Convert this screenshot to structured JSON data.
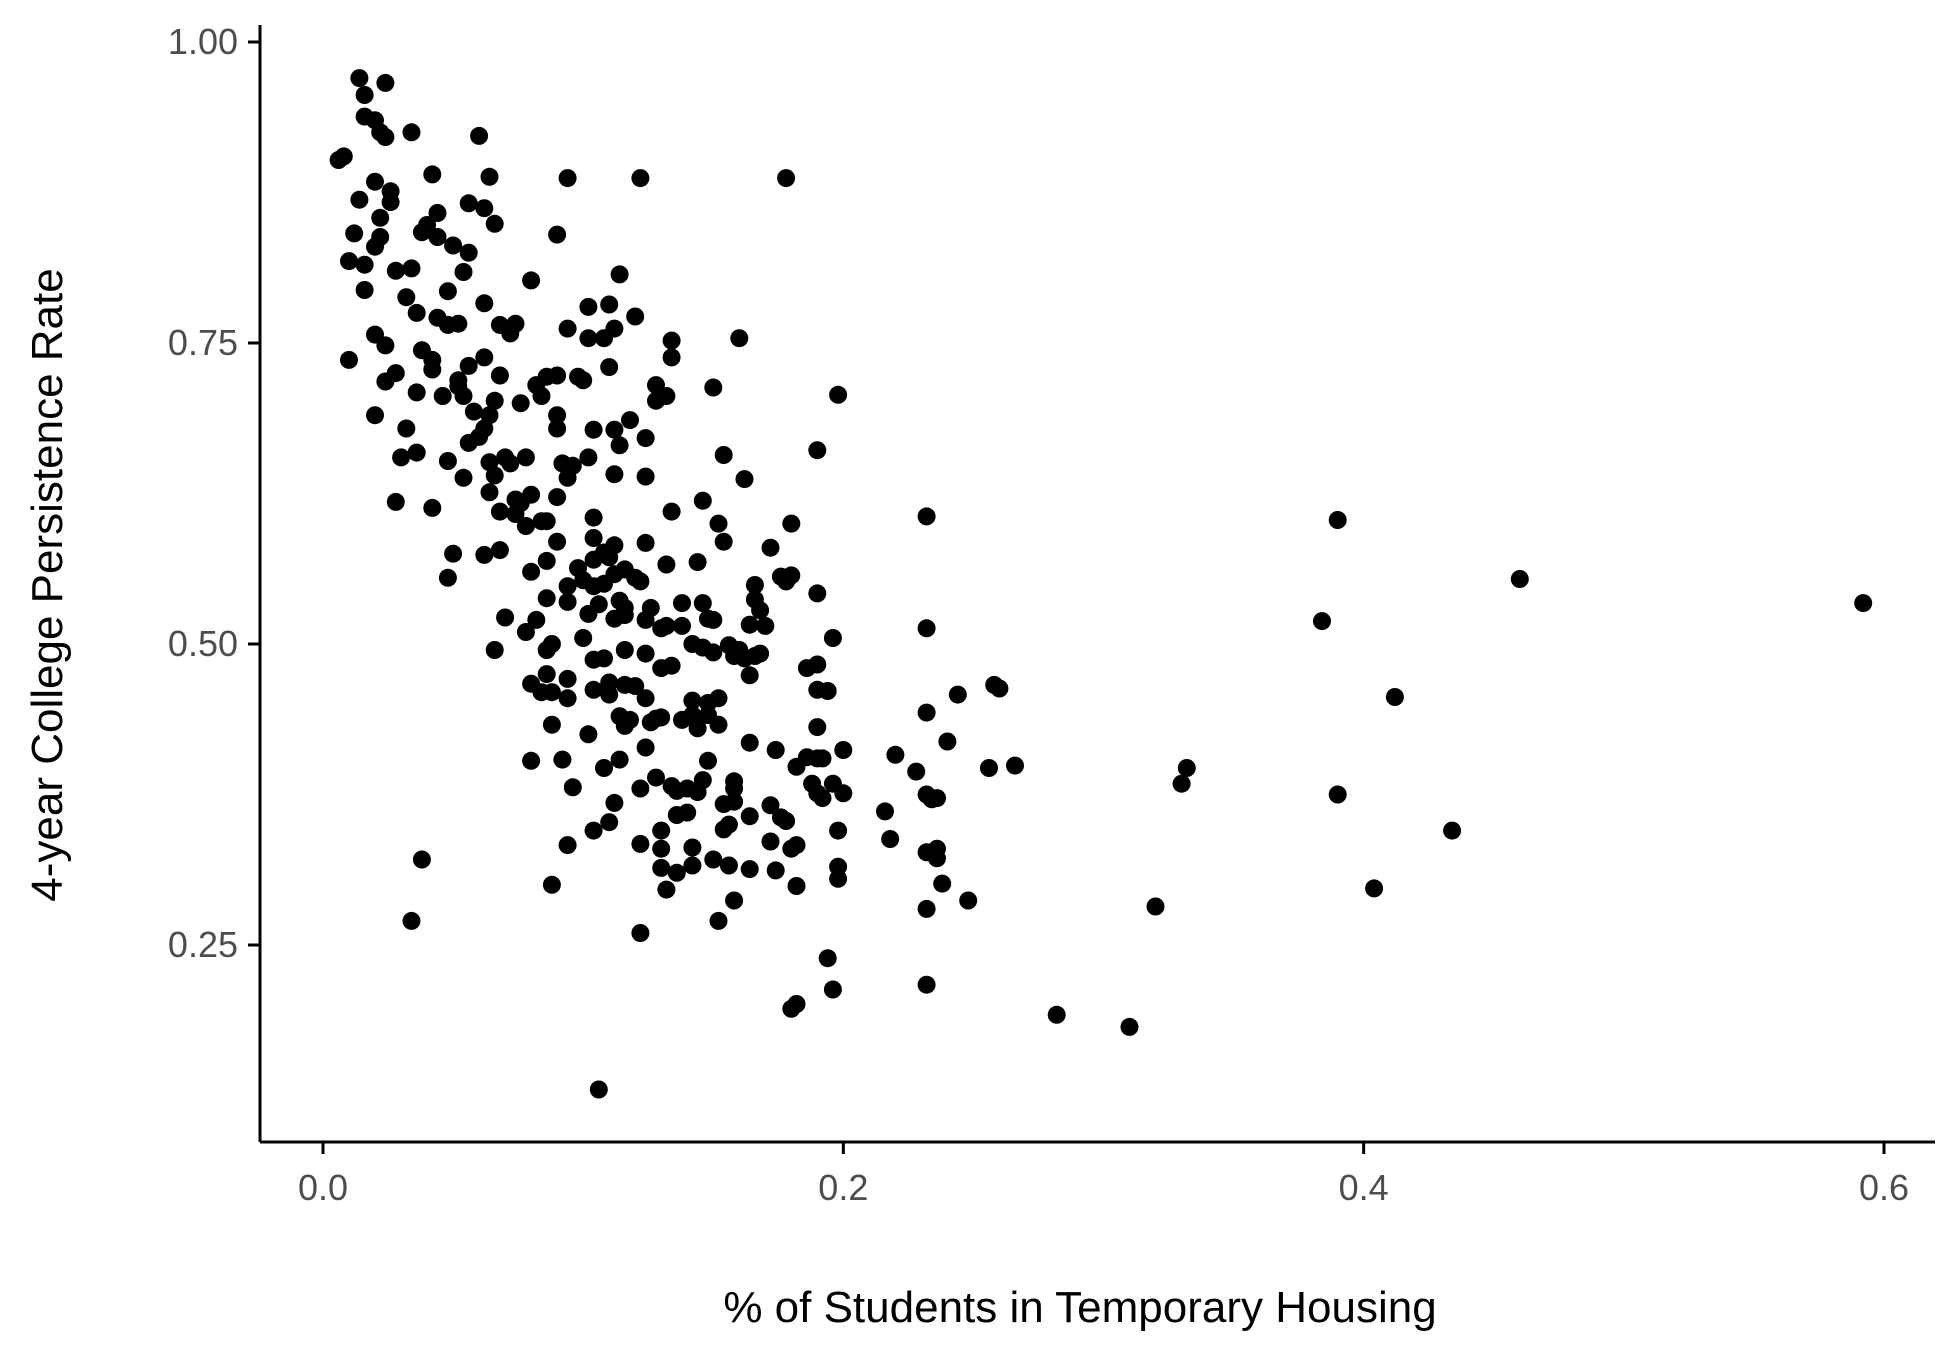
{
  "chart_data": {
    "type": "scatter",
    "title": "",
    "xlabel": "% of Students in Temporary Housing",
    "ylabel": "4-year College Persistence Rate",
    "xlim": [
      -0.025,
      0.62
    ],
    "ylim": [
      0.1,
      1.015
    ],
    "x_ticks": [
      0.0,
      0.2,
      0.4,
      0.6
    ],
    "x_tick_labels": [
      "0.0",
      "0.2",
      "0.4",
      "0.6"
    ],
    "y_ticks": [
      0.25,
      0.5,
      0.75,
      1.0
    ],
    "y_tick_labels": [
      "0.25",
      "0.50",
      "0.75",
      "1.00"
    ],
    "grid": false,
    "legend": "none",
    "point_color": "#000000",
    "points": [
      [
        0.014,
        0.97
      ],
      [
        0.024,
        0.966
      ],
      [
        0.016,
        0.956
      ],
      [
        0.016,
        0.938
      ],
      [
        0.02,
        0.935
      ],
      [
        0.022,
        0.925
      ],
      [
        0.024,
        0.921
      ],
      [
        0.034,
        0.925
      ],
      [
        0.06,
        0.922
      ],
      [
        0.006,
        0.902
      ],
      [
        0.008,
        0.905
      ],
      [
        0.042,
        0.89
      ],
      [
        0.064,
        0.888
      ],
      [
        0.094,
        0.887
      ],
      [
        0.122,
        0.887
      ],
      [
        0.178,
        0.887
      ],
      [
        0.02,
        0.884
      ],
      [
        0.026,
        0.876
      ],
      [
        0.014,
        0.869
      ],
      [
        0.026,
        0.867
      ],
      [
        0.056,
        0.866
      ],
      [
        0.062,
        0.862
      ],
      [
        0.044,
        0.858
      ],
      [
        0.022,
        0.854
      ],
      [
        0.066,
        0.849
      ],
      [
        0.04,
        0.848
      ],
      [
        0.038,
        0.842
      ],
      [
        0.012,
        0.841
      ],
      [
        0.022,
        0.838
      ],
      [
        0.044,
        0.838
      ],
      [
        0.09,
        0.84
      ],
      [
        0.02,
        0.83
      ],
      [
        0.05,
        0.831
      ],
      [
        0.056,
        0.825
      ],
      [
        0.01,
        0.818
      ],
      [
        0.016,
        0.815
      ],
      [
        0.028,
        0.81
      ],
      [
        0.034,
        0.812
      ],
      [
        0.054,
        0.809
      ],
      [
        0.114,
        0.807
      ],
      [
        0.08,
        0.802
      ],
      [
        0.016,
        0.794
      ],
      [
        0.032,
        0.788
      ],
      [
        0.048,
        0.793
      ],
      [
        0.062,
        0.783
      ],
      [
        0.102,
        0.78
      ],
      [
        0.11,
        0.782
      ],
      [
        0.036,
        0.775
      ],
      [
        0.044,
        0.771
      ],
      [
        0.12,
        0.772
      ],
      [
        0.048,
        0.765
      ],
      [
        0.052,
        0.766
      ],
      [
        0.068,
        0.765
      ],
      [
        0.074,
        0.766
      ],
      [
        0.094,
        0.762
      ],
      [
        0.112,
        0.762
      ],
      [
        0.02,
        0.757
      ],
      [
        0.072,
        0.758
      ],
      [
        0.102,
        0.754
      ],
      [
        0.108,
        0.754
      ],
      [
        0.134,
        0.752
      ],
      [
        0.16,
        0.754
      ],
      [
        0.024,
        0.748
      ],
      [
        0.038,
        0.744
      ],
      [
        0.01,
        0.736
      ],
      [
        0.042,
        0.736
      ],
      [
        0.062,
        0.738
      ],
      [
        0.134,
        0.738
      ],
      [
        0.042,
        0.728
      ],
      [
        0.068,
        0.723
      ],
      [
        0.11,
        0.73
      ],
      [
        0.028,
        0.725
      ],
      [
        0.056,
        0.731
      ],
      [
        0.024,
        0.718
      ],
      [
        0.052,
        0.719
      ],
      [
        0.086,
        0.722
      ],
      [
        0.09,
        0.723
      ],
      [
        0.098,
        0.722
      ],
      [
        0.1,
        0.719
      ],
      [
        0.082,
        0.715
      ],
      [
        0.128,
        0.715
      ],
      [
        0.15,
        0.713
      ],
      [
        0.036,
        0.709
      ],
      [
        0.046,
        0.706
      ],
      [
        0.052,
        0.714
      ],
      [
        0.054,
        0.706
      ],
      [
        0.084,
        0.706
      ],
      [
        0.128,
        0.702
      ],
      [
        0.132,
        0.706
      ],
      [
        0.198,
        0.707
      ],
      [
        0.058,
        0.693
      ],
      [
        0.064,
        0.69
      ],
      [
        0.066,
        0.702
      ],
      [
        0.076,
        0.7
      ],
      [
        0.09,
        0.69
      ],
      [
        0.02,
        0.69
      ],
      [
        0.062,
        0.679
      ],
      [
        0.06,
        0.672
      ],
      [
        0.056,
        0.667
      ],
      [
        0.032,
        0.679
      ],
      [
        0.104,
        0.678
      ],
      [
        0.112,
        0.678
      ],
      [
        0.118,
        0.686
      ],
      [
        0.124,
        0.671
      ],
      [
        0.09,
        0.679
      ],
      [
        0.114,
        0.665
      ],
      [
        0.03,
        0.655
      ],
      [
        0.036,
        0.659
      ],
      [
        0.048,
        0.652
      ],
      [
        0.064,
        0.651
      ],
      [
        0.07,
        0.655
      ],
      [
        0.072,
        0.65
      ],
      [
        0.078,
        0.655
      ],
      [
        0.092,
        0.65
      ],
      [
        0.096,
        0.648
      ],
      [
        0.102,
        0.655
      ],
      [
        0.154,
        0.657
      ],
      [
        0.19,
        0.661
      ],
      [
        0.054,
        0.638
      ],
      [
        0.066,
        0.64
      ],
      [
        0.094,
        0.638
      ],
      [
        0.112,
        0.641
      ],
      [
        0.124,
        0.639
      ],
      [
        0.162,
        0.637
      ],
      [
        0.064,
        0.626
      ],
      [
        0.08,
        0.624
      ],
      [
        0.09,
        0.622
      ],
      [
        0.074,
        0.62
      ],
      [
        0.076,
        0.617
      ],
      [
        0.068,
        0.61
      ],
      [
        0.028,
        0.618
      ],
      [
        0.042,
        0.613
      ],
      [
        0.074,
        0.608
      ],
      [
        0.084,
        0.602
      ],
      [
        0.086,
        0.602
      ],
      [
        0.078,
        0.598
      ],
      [
        0.104,
        0.605
      ],
      [
        0.134,
        0.61
      ],
      [
        0.146,
        0.619
      ],
      [
        0.152,
        0.6
      ],
      [
        0.18,
        0.6
      ],
      [
        0.232,
        0.606
      ],
      [
        0.39,
        0.603
      ],
      [
        0.104,
        0.588
      ],
      [
        0.112,
        0.582
      ],
      [
        0.09,
        0.585
      ],
      [
        0.124,
        0.584
      ],
      [
        0.154,
        0.585
      ],
      [
        0.05,
        0.575
      ],
      [
        0.062,
        0.574
      ],
      [
        0.068,
        0.578
      ],
      [
        0.108,
        0.576
      ],
      [
        0.11,
        0.572
      ],
      [
        0.104,
        0.57
      ],
      [
        0.172,
        0.58
      ],
      [
        0.098,
        0.563
      ],
      [
        0.086,
        0.569
      ],
      [
        0.08,
        0.56
      ],
      [
        0.116,
        0.562
      ],
      [
        0.112,
        0.558
      ],
      [
        0.12,
        0.555
      ],
      [
        0.132,
        0.566
      ],
      [
        0.144,
        0.568
      ],
      [
        0.176,
        0.556
      ],
      [
        0.18,
        0.557
      ],
      [
        0.178,
        0.552
      ],
      [
        0.048,
        0.555
      ],
      [
        0.094,
        0.548
      ],
      [
        0.1,
        0.553
      ],
      [
        0.104,
        0.548
      ],
      [
        0.108,
        0.55
      ],
      [
        0.122,
        0.552
      ],
      [
        0.166,
        0.549
      ],
      [
        0.19,
        0.542
      ],
      [
        0.086,
        0.538
      ],
      [
        0.094,
        0.535
      ],
      [
        0.106,
        0.533
      ],
      [
        0.114,
        0.536
      ],
      [
        0.116,
        0.53
      ],
      [
        0.126,
        0.53
      ],
      [
        0.138,
        0.534
      ],
      [
        0.146,
        0.534
      ],
      [
        0.166,
        0.537
      ],
      [
        0.168,
        0.528
      ],
      [
        0.46,
        0.554
      ],
      [
        0.592,
        0.534
      ],
      [
        0.07,
        0.522
      ],
      [
        0.082,
        0.52
      ],
      [
        0.102,
        0.525
      ],
      [
        0.112,
        0.521
      ],
      [
        0.116,
        0.524
      ],
      [
        0.124,
        0.52
      ],
      [
        0.132,
        0.515
      ],
      [
        0.138,
        0.515
      ],
      [
        0.148,
        0.521
      ],
      [
        0.15,
        0.52
      ],
      [
        0.164,
        0.516
      ],
      [
        0.17,
        0.515
      ],
      [
        0.232,
        0.513
      ],
      [
        0.384,
        0.519
      ],
      [
        0.078,
        0.51
      ],
      [
        0.088,
        0.5
      ],
      [
        0.1,
        0.505
      ],
      [
        0.13,
        0.513
      ],
      [
        0.142,
        0.5
      ],
      [
        0.146,
        0.497
      ],
      [
        0.156,
        0.499
      ],
      [
        0.16,
        0.495
      ],
      [
        0.162,
        0.488
      ],
      [
        0.166,
        0.49
      ],
      [
        0.168,
        0.492
      ],
      [
        0.196,
        0.505
      ],
      [
        0.066,
        0.495
      ],
      [
        0.086,
        0.495
      ],
      [
        0.104,
        0.487
      ],
      [
        0.108,
        0.488
      ],
      [
        0.116,
        0.495
      ],
      [
        0.124,
        0.492
      ],
      [
        0.13,
        0.48
      ],
      [
        0.134,
        0.482
      ],
      [
        0.15,
        0.493
      ],
      [
        0.158,
        0.49
      ],
      [
        0.164,
        0.474
      ],
      [
        0.186,
        0.48
      ],
      [
        0.19,
        0.483
      ],
      [
        0.086,
        0.475
      ],
      [
        0.08,
        0.467
      ],
      [
        0.094,
        0.471
      ],
      [
        0.11,
        0.468
      ],
      [
        0.116,
        0.466
      ],
      [
        0.12,
        0.465
      ],
      [
        0.104,
        0.462
      ],
      [
        0.11,
        0.458
      ],
      [
        0.084,
        0.46
      ],
      [
        0.088,
        0.46
      ],
      [
        0.094,
        0.455
      ],
      [
        0.124,
        0.455
      ],
      [
        0.142,
        0.453
      ],
      [
        0.152,
        0.455
      ],
      [
        0.148,
        0.451
      ],
      [
        0.19,
        0.462
      ],
      [
        0.194,
        0.461
      ],
      [
        0.244,
        0.458
      ],
      [
        0.258,
        0.466
      ],
      [
        0.26,
        0.463
      ],
      [
        0.412,
        0.456
      ],
      [
        0.232,
        0.443
      ],
      [
        0.088,
        0.433
      ],
      [
        0.102,
        0.425
      ],
      [
        0.114,
        0.44
      ],
      [
        0.116,
        0.432
      ],
      [
        0.118,
        0.437
      ],
      [
        0.126,
        0.435
      ],
      [
        0.128,
        0.438
      ],
      [
        0.13,
        0.439
      ],
      [
        0.138,
        0.437
      ],
      [
        0.142,
        0.441
      ],
      [
        0.144,
        0.43
      ],
      [
        0.148,
        0.441
      ],
      [
        0.152,
        0.433
      ],
      [
        0.19,
        0.431
      ],
      [
        0.124,
        0.414
      ],
      [
        0.164,
        0.418
      ],
      [
        0.174,
        0.412
      ],
      [
        0.2,
        0.412
      ],
      [
        0.22,
        0.408
      ],
      [
        0.24,
        0.419
      ],
      [
        0.08,
        0.403
      ],
      [
        0.092,
        0.404
      ],
      [
        0.108,
        0.397
      ],
      [
        0.114,
        0.404
      ],
      [
        0.148,
        0.403
      ],
      [
        0.182,
        0.398
      ],
      [
        0.186,
        0.406
      ],
      [
        0.19,
        0.405
      ],
      [
        0.192,
        0.405
      ],
      [
        0.228,
        0.394
      ],
      [
        0.256,
        0.397
      ],
      [
        0.266,
        0.399
      ],
      [
        0.332,
        0.397
      ],
      [
        0.096,
        0.381
      ],
      [
        0.122,
        0.38
      ],
      [
        0.128,
        0.389
      ],
      [
        0.134,
        0.382
      ],
      [
        0.136,
        0.378
      ],
      [
        0.14,
        0.38
      ],
      [
        0.144,
        0.377
      ],
      [
        0.146,
        0.387
      ],
      [
        0.158,
        0.38
      ],
      [
        0.158,
        0.386
      ],
      [
        0.188,
        0.384
      ],
      [
        0.19,
        0.376
      ],
      [
        0.192,
        0.372
      ],
      [
        0.196,
        0.384
      ],
      [
        0.2,
        0.376
      ],
      [
        0.232,
        0.375
      ],
      [
        0.234,
        0.371
      ],
      [
        0.236,
        0.372
      ],
      [
        0.33,
        0.384
      ],
      [
        0.39,
        0.375
      ],
      [
        0.112,
        0.368
      ],
      [
        0.14,
        0.36
      ],
      [
        0.136,
        0.358
      ],
      [
        0.154,
        0.367
      ],
      [
        0.158,
        0.369
      ],
      [
        0.164,
        0.357
      ],
      [
        0.172,
        0.366
      ],
      [
        0.176,
        0.356
      ],
      [
        0.11,
        0.352
      ],
      [
        0.104,
        0.345
      ],
      [
        0.13,
        0.345
      ],
      [
        0.154,
        0.346
      ],
      [
        0.156,
        0.35
      ],
      [
        0.178,
        0.353
      ],
      [
        0.198,
        0.345
      ],
      [
        0.216,
        0.361
      ],
      [
        0.434,
        0.345
      ],
      [
        0.094,
        0.333
      ],
      [
        0.122,
        0.334
      ],
      [
        0.13,
        0.33
      ],
      [
        0.142,
        0.331
      ],
      [
        0.172,
        0.336
      ],
      [
        0.18,
        0.33
      ],
      [
        0.182,
        0.333
      ],
      [
        0.218,
        0.338
      ],
      [
        0.232,
        0.327
      ],
      [
        0.236,
        0.322
      ],
      [
        0.236,
        0.33
      ],
      [
        0.038,
        0.321
      ],
      [
        0.13,
        0.314
      ],
      [
        0.136,
        0.31
      ],
      [
        0.142,
        0.316
      ],
      [
        0.15,
        0.321
      ],
      [
        0.156,
        0.316
      ],
      [
        0.164,
        0.313
      ],
      [
        0.174,
        0.312
      ],
      [
        0.198,
        0.315
      ],
      [
        0.088,
        0.3
      ],
      [
        0.132,
        0.296
      ],
      [
        0.158,
        0.287
      ],
      [
        0.182,
        0.299
      ],
      [
        0.198,
        0.305
      ],
      [
        0.238,
        0.301
      ],
      [
        0.248,
        0.287
      ],
      [
        0.404,
        0.297
      ],
      [
        0.232,
        0.28
      ],
      [
        0.32,
        0.282
      ],
      [
        0.034,
        0.27
      ],
      [
        0.122,
        0.26
      ],
      [
        0.152,
        0.27
      ],
      [
        0.194,
        0.239
      ],
      [
        0.196,
        0.213
      ],
      [
        0.232,
        0.217
      ],
      [
        0.18,
        0.197
      ],
      [
        0.182,
        0.201
      ],
      [
        0.282,
        0.192
      ],
      [
        0.31,
        0.182
      ],
      [
        0.106,
        0.13
      ]
    ]
  }
}
